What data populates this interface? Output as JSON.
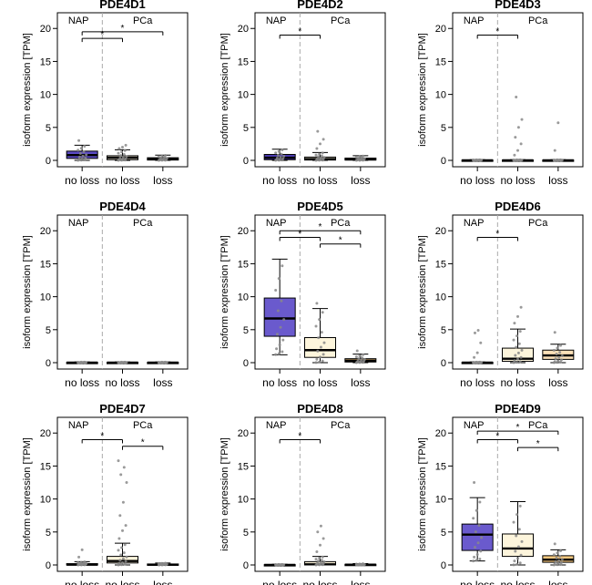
{
  "figure": {
    "group_labels": {
      "left": "NAP",
      "right": "PCa"
    },
    "ylabel": "isoform expression [TPM]",
    "categories": [
      "no loss",
      "no loss",
      "loss"
    ],
    "yticks": [
      0,
      5,
      10,
      15,
      20
    ],
    "ylim": [
      0,
      21
    ],
    "significance_symbol": "*",
    "colors": {
      "high_fill": "#6a5acd",
      "low_fill": "#fdf5dc",
      "mid_fill": "#fbe0b8",
      "points": "#888888",
      "divider": "#aaaaaa"
    }
  },
  "chart_data": [
    {
      "type": "box",
      "title": "PDE4D1",
      "categories": [
        "no loss",
        "no loss",
        "loss"
      ],
      "series": [
        {
          "q1": 0.3,
          "median": 0.8,
          "q3": 1.4,
          "whisker_low": 0,
          "whisker_high": 2.3,
          "fill": "#5b4bc4",
          "outliers": [
            3.0
          ]
        },
        {
          "q1": 0.1,
          "median": 0.4,
          "q3": 0.7,
          "whisker_low": 0,
          "whisker_high": 1.6,
          "fill": "#fdf5dc",
          "outliers": [
            1.8,
            2.0,
            2.3
          ]
        },
        {
          "q1": 0.05,
          "median": 0.2,
          "q3": 0.4,
          "whisker_low": 0,
          "whisker_high": 0.8,
          "fill": "#f5c77e",
          "outliers": []
        }
      ],
      "significance": [
        {
          "from": 0,
          "to": 1,
          "y": 18.5
        },
        {
          "from": 0,
          "to": 2,
          "y": 19.5
        }
      ]
    },
    {
      "type": "box",
      "title": "PDE4D2",
      "categories": [
        "no loss",
        "no loss",
        "loss"
      ],
      "series": [
        {
          "q1": 0.1,
          "median": 0.4,
          "q3": 0.9,
          "whisker_low": 0,
          "whisker_high": 1.7,
          "fill": "#4b3bb4",
          "outliers": []
        },
        {
          "q1": 0.05,
          "median": 0.2,
          "q3": 0.5,
          "whisker_low": 0,
          "whisker_high": 1.2,
          "fill": "#fdf5dc",
          "outliers": [
            1.8,
            2.5,
            3.2,
            4.4
          ]
        },
        {
          "q1": 0.05,
          "median": 0.15,
          "q3": 0.35,
          "whisker_low": 0,
          "whisker_high": 0.7,
          "fill": "#f5c77e",
          "outliers": []
        }
      ],
      "significance": [
        {
          "from": 0,
          "to": 1,
          "y": 19.0
        }
      ]
    },
    {
      "type": "box",
      "title": "PDE4D3",
      "categories": [
        "no loss",
        "no loss",
        "loss"
      ],
      "series": [
        {
          "q1": 0,
          "median": 0,
          "q3": 0.05,
          "whisker_low": 0,
          "whisker_high": 0.1,
          "fill": "#6a5acd",
          "outliers": []
        },
        {
          "q1": 0,
          "median": 0,
          "q3": 0.05,
          "whisker_low": 0,
          "whisker_high": 0.1,
          "fill": "#fdf5dc",
          "outliers": [
            0.8,
            1.5,
            2.5,
            3.5,
            5.0,
            6.2,
            9.6
          ]
        },
        {
          "q1": 0,
          "median": 0,
          "q3": 0.05,
          "whisker_low": 0,
          "whisker_high": 0.1,
          "fill": "#f5c77e",
          "outliers": [
            1.5,
            5.7
          ]
        }
      ],
      "significance": [
        {
          "from": 0,
          "to": 1,
          "y": 19.0
        }
      ]
    },
    {
      "type": "box",
      "title": "PDE4D4",
      "categories": [
        "no loss",
        "no loss",
        "loss"
      ],
      "series": [
        {
          "q1": 0,
          "median": 0,
          "q3": 0.05,
          "whisker_low": 0,
          "whisker_high": 0.1,
          "fill": "#6a5acd",
          "outliers": []
        },
        {
          "q1": 0,
          "median": 0,
          "q3": 0.05,
          "whisker_low": 0,
          "whisker_high": 0.1,
          "fill": "#fdf5dc",
          "outliers": []
        },
        {
          "q1": 0,
          "median": 0,
          "q3": 0.05,
          "whisker_low": 0,
          "whisker_high": 0.1,
          "fill": "#f5c77e",
          "outliers": []
        }
      ],
      "significance": []
    },
    {
      "type": "box",
      "title": "PDE4D5",
      "categories": [
        "no loss",
        "no loss",
        "loss"
      ],
      "series": [
        {
          "q1": 4.0,
          "median": 6.7,
          "q3": 9.8,
          "whisker_low": 1.2,
          "whisker_high": 15.7,
          "fill": "#6a5acd",
          "outliers": []
        },
        {
          "q1": 0.8,
          "median": 1.9,
          "q3": 3.8,
          "whisker_low": 0,
          "whisker_high": 8.2,
          "fill": "#fdf5dc",
          "outliers": [
            9.0
          ]
        },
        {
          "q1": 0.1,
          "median": 0.3,
          "q3": 0.6,
          "whisker_low": 0,
          "whisker_high": 1.3,
          "fill": "#f5c77e",
          "outliers": [
            1.8
          ]
        }
      ],
      "significance": [
        {
          "from": 0,
          "to": 1,
          "y": 19.0
        },
        {
          "from": 0,
          "to": 2,
          "y": 20.0
        },
        {
          "from": 1,
          "to": 2,
          "y": 18.0
        }
      ]
    },
    {
      "type": "box",
      "title": "PDE4D6",
      "categories": [
        "no loss",
        "no loss",
        "loss"
      ],
      "series": [
        {
          "q1": 0,
          "median": 0,
          "q3": 0.05,
          "whisker_low": 0,
          "whisker_high": 0.1,
          "fill": "#6a5acd",
          "outliers": [
            0.8,
            1.5,
            3.0,
            4.5,
            4.9
          ]
        },
        {
          "q1": 0.2,
          "median": 0.6,
          "q3": 2.2,
          "whisker_low": 0,
          "whisker_high": 5.1,
          "fill": "#fdf5dc",
          "outliers": [
            6.0,
            7.0,
            8.4
          ]
        },
        {
          "q1": 0.5,
          "median": 1.1,
          "q3": 1.9,
          "whisker_low": 0,
          "whisker_high": 2.8,
          "fill": "#fbe0b8",
          "outliers": [
            4.6
          ]
        }
      ],
      "significance": [
        {
          "from": 0,
          "to": 1,
          "y": 19.0
        }
      ]
    },
    {
      "type": "box",
      "title": "PDE4D7",
      "categories": [
        "no loss",
        "no loss",
        "loss"
      ],
      "series": [
        {
          "q1": 0,
          "median": 0.05,
          "q3": 0.2,
          "whisker_low": 0,
          "whisker_high": 0.5,
          "fill": "#6a5acd",
          "outliers": [
            1.2,
            2.3
          ]
        },
        {
          "q1": 0.3,
          "median": 0.6,
          "q3": 1.3,
          "whisker_low": 0,
          "whisker_high": 3.3,
          "fill": "#fdf5dc",
          "outliers": [
            4.0,
            5.2,
            6.0,
            7.5,
            9.5,
            12.5,
            13.7,
            14.8,
            15.8
          ]
        },
        {
          "q1": 0,
          "median": 0.05,
          "q3": 0.15,
          "whisker_low": 0,
          "whisker_high": 0.3,
          "fill": "#f5c77e",
          "outliers": []
        }
      ],
      "significance": [
        {
          "from": 0,
          "to": 1,
          "y": 19.0
        },
        {
          "from": 1,
          "to": 2,
          "y": 18.0
        }
      ]
    },
    {
      "type": "box",
      "title": "PDE4D8",
      "categories": [
        "no loss",
        "no loss",
        "loss"
      ],
      "series": [
        {
          "q1": 0,
          "median": 0,
          "q3": 0.05,
          "whisker_low": 0,
          "whisker_high": 0.1,
          "fill": "#6a5acd",
          "outliers": []
        },
        {
          "q1": 0,
          "median": 0.1,
          "q3": 0.5,
          "whisker_low": 0,
          "whisker_high": 1.3,
          "fill": "#fdf5dc",
          "outliers": [
            2.0,
            3.0,
            4.0,
            5.0,
            5.9
          ]
        },
        {
          "q1": 0,
          "median": 0.05,
          "q3": 0.1,
          "whisker_low": 0,
          "whisker_high": 0.2,
          "fill": "#f5c77e",
          "outliers": []
        }
      ],
      "significance": [
        {
          "from": 0,
          "to": 1,
          "y": 19.0
        }
      ]
    },
    {
      "type": "box",
      "title": "PDE4D9",
      "categories": [
        "no loss",
        "no loss",
        "loss"
      ],
      "series": [
        {
          "q1": 2.2,
          "median": 4.6,
          "q3": 6.2,
          "whisker_low": 0.6,
          "whisker_high": 10.2,
          "fill": "#6a5acd",
          "outliers": [
            12.5
          ]
        },
        {
          "q1": 1.3,
          "median": 2.5,
          "q3": 4.7,
          "whisker_low": 0,
          "whisker_high": 9.6,
          "fill": "#fdf5dc",
          "outliers": []
        },
        {
          "q1": 0.4,
          "median": 0.8,
          "q3": 1.4,
          "whisker_low": 0,
          "whisker_high": 2.3,
          "fill": "#f5c77e",
          "outliers": [
            3.2
          ]
        }
      ],
      "significance": [
        {
          "from": 0,
          "to": 1,
          "y": 19.0
        },
        {
          "from": 0,
          "to": 2,
          "y": 20.3
        },
        {
          "from": 1,
          "to": 2,
          "y": 17.8
        }
      ]
    }
  ]
}
